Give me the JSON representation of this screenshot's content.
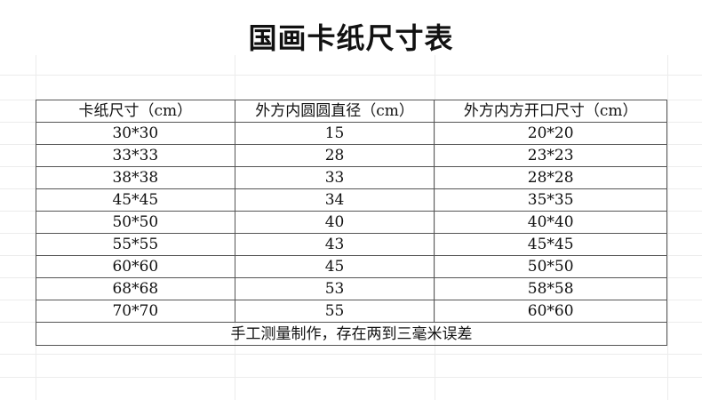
{
  "title": "国画卡纸尺寸表",
  "table": {
    "headers": [
      "卡纸尺寸（cm）",
      "外方内圆圆直径（cm）",
      "外方内方开口尺寸（cm）"
    ],
    "rows": [
      [
        "30*30",
        "15",
        "20*20"
      ],
      [
        "33*33",
        "28",
        "23*23"
      ],
      [
        "38*38",
        "33",
        "28*28"
      ],
      [
        "45*45",
        "34",
        "35*35"
      ],
      [
        "50*50",
        "40",
        "40*40"
      ],
      [
        "55*55",
        "43",
        "45*45"
      ],
      [
        "60*60",
        "45",
        "50*50"
      ],
      [
        "68*68",
        "53",
        "58*58"
      ],
      [
        "70*70",
        "55",
        "60*60"
      ]
    ],
    "footer": "手工测量制作，存在两到三毫米误差"
  }
}
